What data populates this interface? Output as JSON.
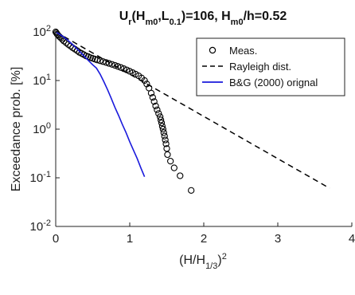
{
  "chart_data": {
    "type": "line",
    "title": {
      "parts": [
        {
          "text": "U",
          "style": "normal"
        },
        {
          "text": "r",
          "style": "sub"
        },
        {
          "text": "(H",
          "style": "normal"
        },
        {
          "text": "m0",
          "style": "sub"
        },
        {
          "text": ",L",
          "style": "normal"
        },
        {
          "text": "0.1",
          "style": "sub"
        },
        {
          "text": ")=106, H",
          "style": "normal"
        },
        {
          "text": "m0",
          "style": "sub"
        },
        {
          "text": "/h=0.52",
          "style": "normal"
        }
      ]
    },
    "xlabel": {
      "parts": [
        {
          "text": "(H/H",
          "style": "normal"
        },
        {
          "text": "1/3",
          "style": "sub"
        },
        {
          "text": ")",
          "style": "normal"
        },
        {
          "text": "2",
          "style": "sup"
        }
      ]
    },
    "ylabel": "Exceedance prob. [%]",
    "xlim": [
      0,
      4
    ],
    "ylim": [
      0.01,
      100
    ],
    "yscale": "log",
    "xticks": [
      0,
      1,
      2,
      3,
      4
    ],
    "xtick_labels": [
      "0",
      "1",
      "2",
      "3",
      "4"
    ],
    "yticks": [
      0.01,
      0.1,
      1,
      10,
      100
    ],
    "ytick_labels": [
      {
        "base": "10",
        "exp": "-2"
      },
      {
        "base": "10",
        "exp": "-1"
      },
      {
        "base": "10",
        "exp": "0"
      },
      {
        "base": "10",
        "exp": "1"
      },
      {
        "base": "10",
        "exp": "2"
      }
    ],
    "grid": false,
    "legend_position": "top-right",
    "series": [
      {
        "name": "Meas.",
        "style": "circle-markers",
        "color": "#000000",
        "x": [
          0.0,
          0.01,
          0.02,
          0.03,
          0.05,
          0.07,
          0.09,
          0.11,
          0.14,
          0.17,
          0.2,
          0.23,
          0.26,
          0.29,
          0.32,
          0.35,
          0.38,
          0.41,
          0.44,
          0.47,
          0.5,
          0.53,
          0.56,
          0.6,
          0.64,
          0.68,
          0.72,
          0.76,
          0.8,
          0.84,
          0.88,
          0.92,
          0.96,
          1.0,
          1.04,
          1.08,
          1.12,
          1.16,
          1.2,
          1.23,
          1.26,
          1.29,
          1.31,
          1.33,
          1.35,
          1.37,
          1.39,
          1.41,
          1.42,
          1.43,
          1.44,
          1.45,
          1.46,
          1.47,
          1.48,
          1.49,
          1.5,
          1.51,
          1.55,
          1.6,
          1.68,
          1.83
        ],
        "y": [
          100,
          95,
          90,
          86,
          80,
          75,
          70,
          65,
          60,
          55,
          51,
          47,
          44,
          41,
          38,
          36,
          34,
          32,
          31,
          29.5,
          28.5,
          27.5,
          26.5,
          25.5,
          24.5,
          23.5,
          22.5,
          21.5,
          20.5,
          19.5,
          18.5,
          17.5,
          16.5,
          15.5,
          14.5,
          13.5,
          12.5,
          11.3,
          10.0,
          8.5,
          7.0,
          5.5,
          4.5,
          3.7,
          3.0,
          2.5,
          2.1,
          1.8,
          1.55,
          1.35,
          1.15,
          1.0,
          0.85,
          0.72,
          0.6,
          0.5,
          0.4,
          0.3,
          0.22,
          0.16,
          0.11,
          0.055
        ]
      },
      {
        "name": "Rayleigh dist.",
        "style": "dashed-line",
        "color": "#000000",
        "x": [
          0,
          3.7
        ],
        "y": [
          100,
          0.061
        ]
      },
      {
        "name": "B&G (2000) orignal",
        "style": "solid-line",
        "color": "#1a1adc",
        "x": [
          0.0,
          0.05,
          0.1,
          0.15,
          0.2,
          0.25,
          0.3,
          0.35,
          0.4,
          0.45,
          0.5,
          0.55,
          0.6,
          0.65,
          0.7,
          0.75,
          0.8,
          0.85,
          0.9,
          0.95,
          1.0,
          1.05,
          1.1,
          1.15,
          1.2
        ],
        "y": [
          100,
          90,
          80,
          70,
          60,
          51,
          43,
          36,
          30,
          25,
          21,
          18,
          13.5,
          9.5,
          6.5,
          4.3,
          2.8,
          1.9,
          1.25,
          0.85,
          0.55,
          0.37,
          0.25,
          0.16,
          0.105
        ]
      }
    ]
  }
}
